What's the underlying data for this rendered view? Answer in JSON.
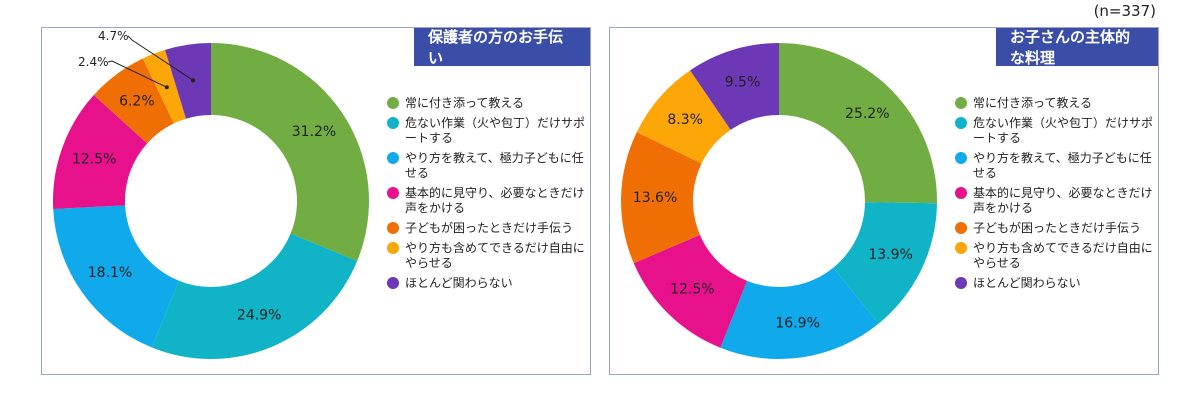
{
  "sample_size": "(n=337)",
  "legend_items": [
    {
      "label": "常に付き添って教える",
      "color": "#72ad43"
    },
    {
      "label": "危ない作業（火や包丁）だけサポートする",
      "color": "#11b3c7"
    },
    {
      "label": "やり方を教えて、極力子どもに任せる",
      "color": "#10a9ec"
    },
    {
      "label": "基本的に見守り、必要なときだけ声をかける",
      "color": "#e8118c"
    },
    {
      "label": "子どもが困ったときだけ手伝う",
      "color": "#f06f05"
    },
    {
      "label": "やり方も含めてできるだけ自由にやらせる",
      "color": "#fca608"
    },
    {
      "label": "ほとんど関わらない",
      "color": "#6d38b5"
    }
  ],
  "chart_data": [
    {
      "type": "pie",
      "title": "保護者の方のお手伝い",
      "categories": [
        "常に付き添って教える",
        "危ない作業（火や包丁）だけサポートする",
        "やり方を教えて、極力子どもに任せる",
        "基本的に見守り、必要なときだけ声をかける",
        "子どもが困ったときだけ手伝う",
        "やり方も含めてできるだけ自由にやらせる",
        "ほとんど関わらない"
      ],
      "values": [
        31.2,
        24.9,
        18.1,
        12.5,
        6.2,
        2.4,
        4.7
      ],
      "labels": [
        "31.2%",
        "24.9%",
        "18.1%",
        "12.5%",
        "6.2%",
        "2.4%",
        "4.7%"
      ],
      "legend": "right"
    },
    {
      "type": "pie",
      "title": "お子さんの主体的な料理",
      "categories": [
        "常に付き添って教える",
        "危ない作業（火や包丁）だけサポートする",
        "やり方を教えて、極力子どもに任せる",
        "基本的に見守り、必要なときだけ声をかける",
        "子どもが困ったときだけ手伝う",
        "やり方も含めてできるだけ自由にやらせる",
        "ほとんど関わらない"
      ],
      "values": [
        25.2,
        13.9,
        16.9,
        12.5,
        13.6,
        8.3,
        9.5
      ],
      "labels": [
        "25.2%",
        "13.9%",
        "16.9%",
        "12.5%",
        "13.6%",
        "8.3%",
        "9.5%"
      ],
      "legend": "right"
    }
  ]
}
